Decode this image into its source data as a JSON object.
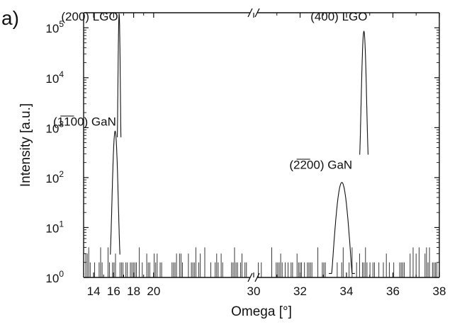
{
  "panel_label": "a)",
  "chart_data": {
    "type": "line",
    "xlabel": "Omega [°]",
    "ylabel": "Intensity [a.u.]",
    "yscale": "log",
    "ylim": [
      1,
      200000
    ],
    "axis_break": {
      "left_segment": [
        13,
        30
      ],
      "right_segment": [
        30,
        38
      ]
    },
    "x_ticks": [
      "14",
      "16",
      "18",
      "20",
      "30",
      "32",
      "34",
      "36",
      "38"
    ],
    "y_ticks": [
      {
        "value": 1,
        "base": "10",
        "exp": "0"
      },
      {
        "value": 10,
        "base": "10",
        "exp": "1"
      },
      {
        "value": 100,
        "base": "10",
        "exp": "2"
      },
      {
        "value": 1000,
        "base": "10",
        "exp": "3"
      },
      {
        "value": 10000,
        "base": "10",
        "exp": "4"
      },
      {
        "value": 100000,
        "base": "10",
        "exp": "5"
      }
    ],
    "annotations": [
      {
        "x": 16.45,
        "y": 140000,
        "text": "(200) LGO"
      },
      {
        "x": 16.25,
        "y": 1100,
        "text": "(1̅1̅00) GaN"
      },
      {
        "x": 34.9,
        "y": 140000,
        "text": "(400) LGO"
      },
      {
        "x": 34.25,
        "y": 150,
        "text": "(2̅2̅00) GaN"
      }
    ],
    "series": [
      {
        "peaks": [
          {
            "x": 16.15,
            "y": 850
          },
          {
            "x": 16.55,
            "y": 190000
          },
          {
            "x": 33.8,
            "y": 80
          },
          {
            "x": 34.75,
            "y": 85000
          }
        ],
        "noise_floor": [
          1,
          4
        ]
      }
    ]
  }
}
